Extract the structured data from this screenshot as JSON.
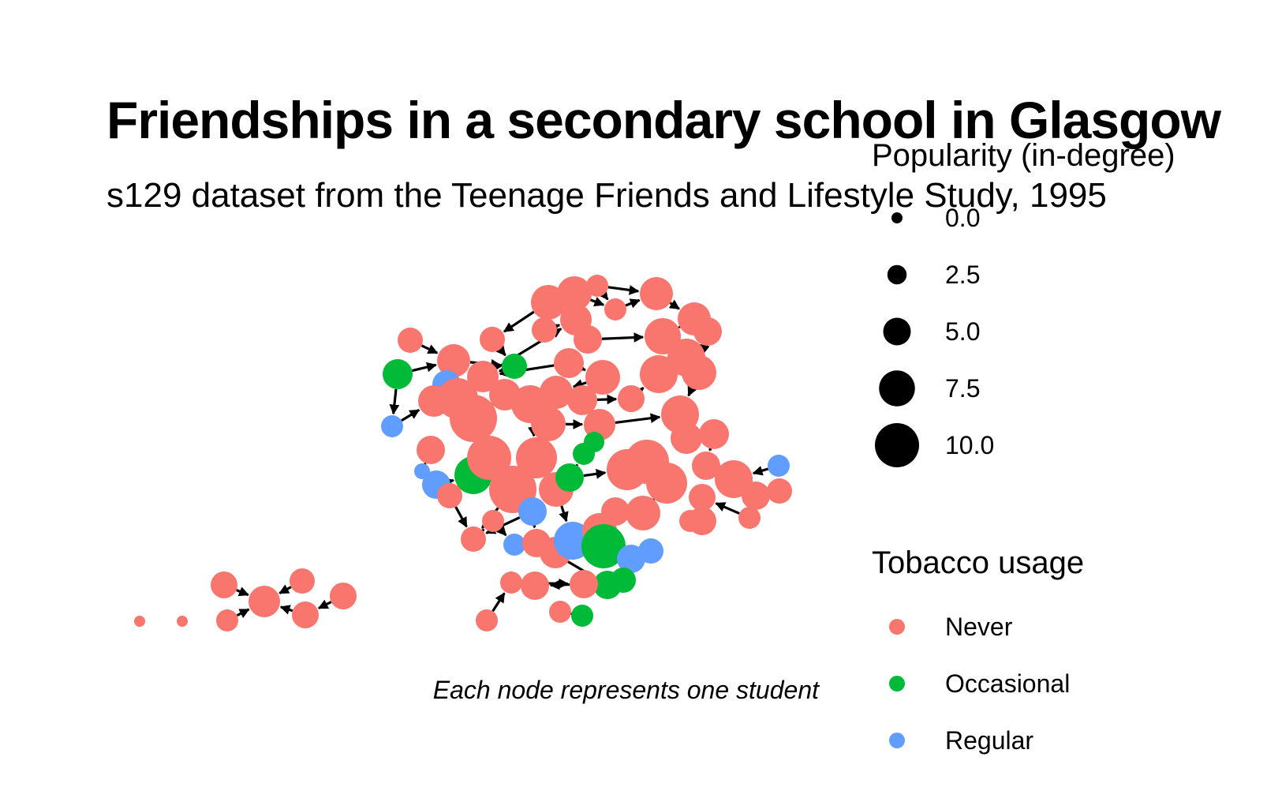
{
  "title": "Friendships in a secondary school in Glasgow",
  "subtitle": "s129 dataset from the Teenage Friends and Lifestyle Study, 1995",
  "caption": "Each node represents one student",
  "legend_size": {
    "title": "Popularity (in-degree)",
    "items": [
      {
        "label": "0.0",
        "value": 0
      },
      {
        "label": "2.5",
        "value": 2.5
      },
      {
        "label": "5.0",
        "value": 5
      },
      {
        "label": "7.5",
        "value": 7.5
      },
      {
        "label": "10.0",
        "value": 10
      }
    ]
  },
  "legend_color": {
    "title": "Tobacco usage",
    "items": [
      {
        "label": "Never",
        "color": "#F8766D"
      },
      {
        "label": "Occasional",
        "color": "#00BA38"
      },
      {
        "label": "Regular",
        "color": "#619CFF"
      }
    ]
  },
  "colors": {
    "Never": "#F8766D",
    "Occasional": "#00BA38",
    "Regular": "#619CFF",
    "edge": "#000000"
  },
  "network": {
    "node_count": 129,
    "edges_shown": true,
    "node_color_by": "Tobacco usage",
    "node_size_by": "Popularity (in-degree)"
  }
}
